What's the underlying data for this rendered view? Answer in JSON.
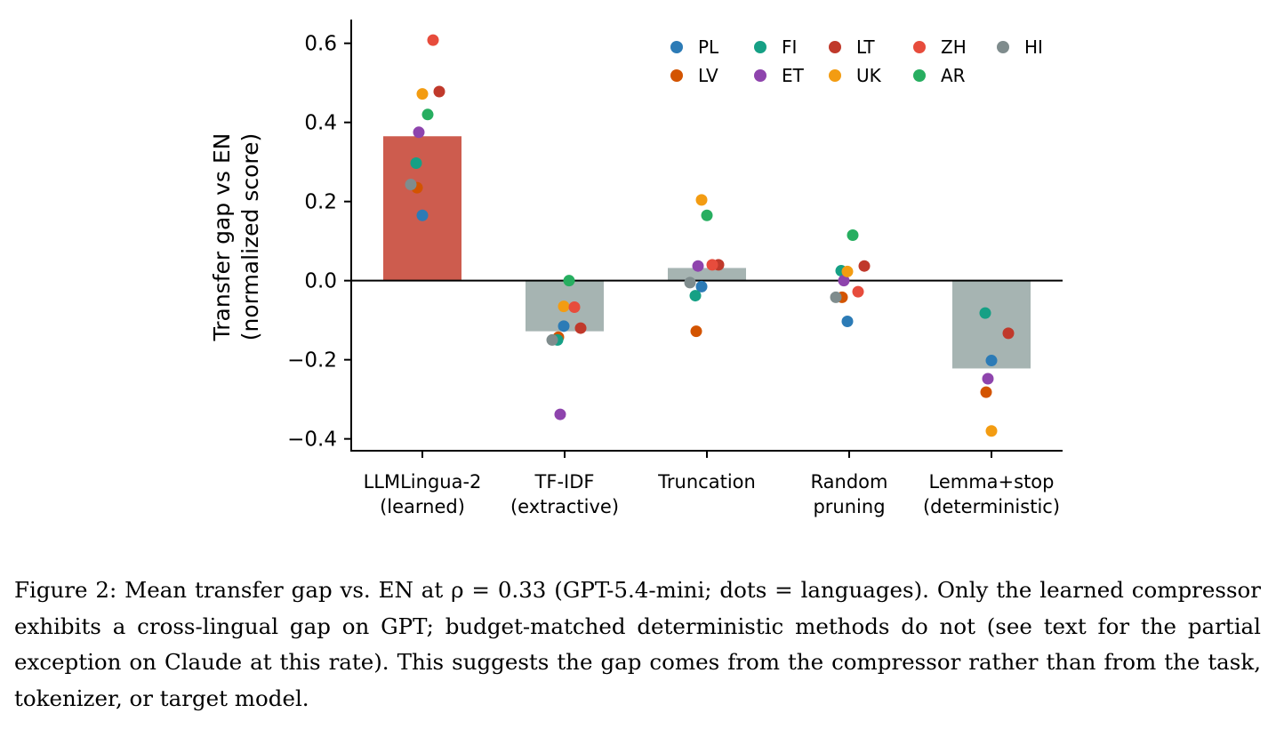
{
  "chart_data": {
    "type": "bar",
    "categories": [
      [
        "LLMLingua-2",
        "(learned)"
      ],
      [
        "TF-IDF",
        "(extractive)"
      ],
      [
        "Truncation"
      ],
      [
        "Random",
        "pruning"
      ],
      [
        "Lemma+stop",
        "(deterministic)"
      ]
    ],
    "values": [
      0.365,
      -0.128,
      0.032,
      0.0,
      -0.222
    ],
    "bar_colors": [
      "#cd5c4e",
      "#a6b4b2",
      "#a6b4b2",
      "#a6b4b2",
      "#a6b4b2"
    ],
    "ylabel": [
      "Transfer gap vs EN",
      "(normalized score)"
    ],
    "ylim": [
      -0.43,
      0.66
    ],
    "yticks": [
      0.6,
      0.4,
      0.2,
      0.0,
      -0.2,
      -0.4
    ],
    "ytick_labels": [
      "0.6",
      "0.4",
      "0.2",
      "0.0",
      "−0.2",
      "−0.4"
    ],
    "grid": false,
    "legend_position": "top-right",
    "series": [
      {
        "name": "PL",
        "color": "#2c7bb6",
        "values": [
          0.165,
          -0.115,
          -0.015,
          -0.103,
          -0.202
        ]
      },
      {
        "name": "LV",
        "color": "#d35400",
        "values": [
          0.235,
          -0.143,
          -0.128,
          -0.042,
          -0.282
        ]
      },
      {
        "name": "FI",
        "color": "#16a085",
        "values": [
          0.297,
          -0.15,
          -0.038,
          0.025,
          -0.082
        ]
      },
      {
        "name": "ET",
        "color": "#8e44ad",
        "values": [
          0.375,
          -0.338,
          0.037,
          0.0,
          -0.248
        ]
      },
      {
        "name": "LT",
        "color": "#c0392b",
        "values": [
          0.478,
          -0.12,
          0.04,
          0.037,
          -0.133
        ]
      },
      {
        "name": "UK",
        "color": "#f39c12",
        "values": [
          0.472,
          -0.065,
          0.204,
          0.023,
          -0.38
        ]
      },
      {
        "name": "ZH",
        "color": "#e74c3c",
        "values": [
          0.608,
          -0.067,
          0.04,
          -0.028,
          null
        ]
      },
      {
        "name": "AR",
        "color": "#27ae60",
        "values": [
          0.42,
          0.0,
          0.165,
          0.115,
          null
        ]
      },
      {
        "name": "HI",
        "color": "#7f8c8d",
        "values": [
          0.243,
          -0.15,
          -0.005,
          -0.042,
          null
        ]
      }
    ]
  },
  "caption": "Figure 2:  Mean transfer gap vs. EN at ρ = 0.33 (GPT-5.4-mini; dots = languages).  Only the learned compressor exhibits a cross-lingual gap on GPT; budget-matched deterministic methods do not (see text for the partial exception on Claude at this rate).  This suggests the gap comes from the compressor rather than from the task, tokenizer, or target model."
}
